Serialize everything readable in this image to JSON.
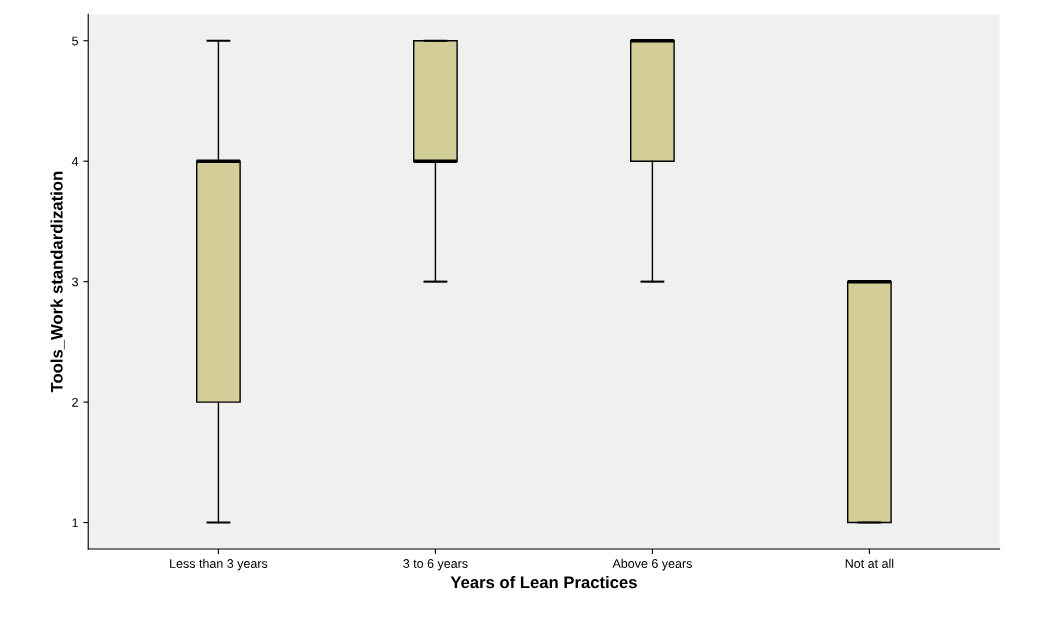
{
  "chart_data": {
    "type": "box",
    "xlabel": "Years of Lean Practices",
    "ylabel": "Tools_Work standardization",
    "categories": [
      "Less than 3 years",
      "3 to 6 years",
      "Above 6 years",
      "Not at all"
    ],
    "boxes": [
      {
        "low": 1,
        "q1": 2,
        "median": 4,
        "q3": 4,
        "high": 5
      },
      {
        "low": 3,
        "q1": 4,
        "median": 4,
        "q3": 5,
        "high": 5
      },
      {
        "low": 3,
        "q1": 4,
        "median": 5,
        "q3": 5,
        "high": 5
      },
      {
        "low": 1,
        "q1": 1,
        "median": 3,
        "q3": 3,
        "high": 3
      }
    ],
    "color": "#d3ce97",
    "ylim": [
      0.78,
      5.22
    ],
    "yticks": [
      1,
      2,
      3,
      4,
      5
    ],
    "grid": false
  }
}
